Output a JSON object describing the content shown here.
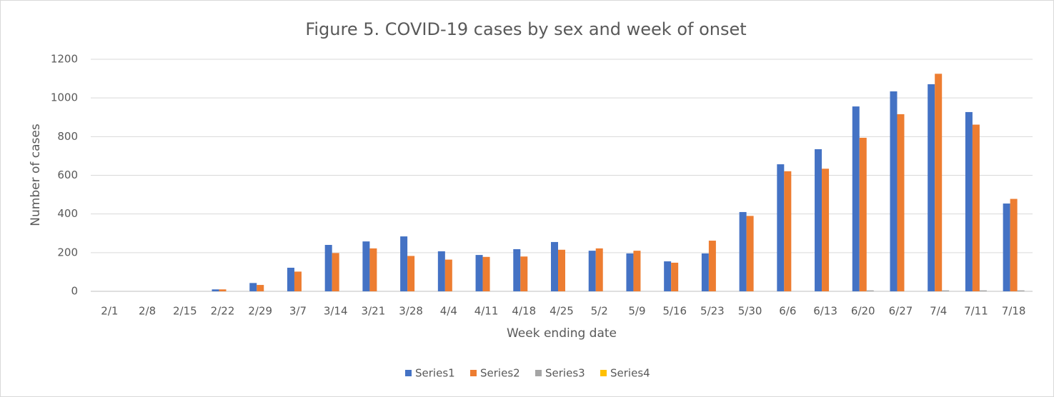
{
  "chart_data": {
    "type": "bar",
    "title": "Figure 5. COVID-19 cases by sex and week of onset",
    "x_label": "Week ending date",
    "y_label": "Number of cases",
    "categories": [
      "2/1",
      "2/8",
      "2/15",
      "2/22",
      "2/29",
      "3/7",
      "3/14",
      "3/21",
      "3/28",
      "4/4",
      "4/11",
      "4/18",
      "4/25",
      "5/2",
      "5/9",
      "5/16",
      "5/23",
      "5/30",
      "6/6",
      "6/13",
      "6/20",
      "6/27",
      "7/4",
      "7/11",
      "7/18"
    ],
    "series": [
      {
        "name": "Series1",
        "color": "#4472c4",
        "values": [
          0,
          0,
          0,
          10,
          43,
          122,
          240,
          258,
          284,
          207,
          188,
          218,
          255,
          210,
          196,
          155,
          196,
          410,
          657,
          735,
          956,
          1034,
          1071,
          927,
          454
        ]
      },
      {
        "name": "Series2",
        "color": "#ed7d31",
        "values": [
          0,
          0,
          0,
          10,
          33,
          102,
          198,
          222,
          183,
          164,
          178,
          180,
          215,
          222,
          210,
          148,
          262,
          390,
          621,
          634,
          794,
          916,
          1125,
          862,
          478
        ]
      },
      {
        "name": "Series3",
        "color": "#a5a5a5",
        "values": [
          0,
          0,
          0,
          0,
          0,
          0,
          0,
          0,
          0,
          0,
          0,
          0,
          0,
          0,
          0,
          0,
          0,
          0,
          0,
          0,
          5,
          0,
          5,
          5,
          5
        ]
      },
      {
        "name": "Series4",
        "color": "#ffc000",
        "values": [
          0,
          0,
          0,
          0,
          0,
          0,
          0,
          0,
          0,
          0,
          0,
          0,
          0,
          0,
          0,
          0,
          0,
          0,
          0,
          0,
          0,
          0,
          0,
          0,
          0
        ]
      }
    ],
    "ylim": [
      0,
      1200
    ],
    "yticks": [
      0,
      200,
      400,
      600,
      800,
      1000,
      1200
    ],
    "grid": true,
    "legend": "bottom"
  }
}
